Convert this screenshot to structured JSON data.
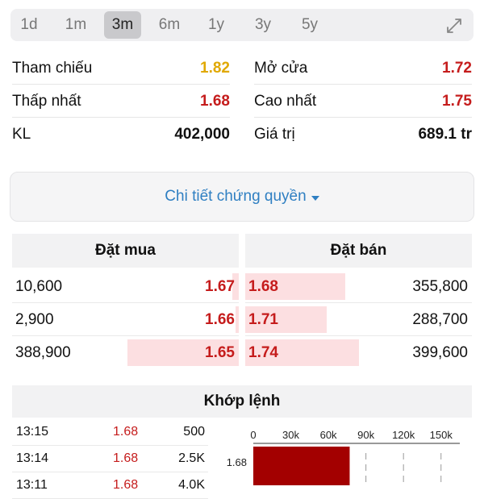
{
  "periods": [
    {
      "label": "1d",
      "active": false
    },
    {
      "label": "1m",
      "active": false
    },
    {
      "label": "3m",
      "active": true
    },
    {
      "label": "6m",
      "active": false
    },
    {
      "label": "1y",
      "active": false
    },
    {
      "label": "3y",
      "active": false
    },
    {
      "label": "5y",
      "active": false
    }
  ],
  "expand_icon": "expand-diagonal-icon",
  "stats": {
    "reference": {
      "label": "Tham chiếu",
      "value": "1.82",
      "color": "#e0a800"
    },
    "open": {
      "label": "Mở cửa",
      "value": "1.72",
      "color": "#c51c1c"
    },
    "low": {
      "label": "Thấp nhất",
      "value": "1.68",
      "color": "#c51c1c"
    },
    "high": {
      "label": "Cao nhất",
      "value": "1.75",
      "color": "#c51c1c"
    },
    "volume": {
      "label": "KL",
      "value": "402,000",
      "color": "#111111"
    },
    "value": {
      "label": "Giá trị",
      "value": "689.1 tr",
      "color": "#111111"
    }
  },
  "detail_button": {
    "label": "Chi tiết chứng quyền",
    "icon": "caret-down-icon"
  },
  "order_book": {
    "buy_title": "Đặt mua",
    "sell_title": "Đặt bán",
    "buy": [
      {
        "volume": "10,600",
        "price": "1.67",
        "depth": 0.03
      },
      {
        "volume": "2,900",
        "price": "1.66",
        "depth": 0.01
      },
      {
        "volume": "388,900",
        "price": "1.65",
        "depth": 0.49
      }
    ],
    "sell": [
      {
        "price": "1.68",
        "volume": "355,800",
        "depth": 0.44
      },
      {
        "price": "1.71",
        "volume": "288,700",
        "depth": 0.36
      },
      {
        "price": "1.74",
        "volume": "399,600",
        "depth": 0.5
      }
    ]
  },
  "matching": {
    "title": "Khớp lệnh",
    "rows": [
      {
        "time": "13:15",
        "price": "1.68",
        "volume": "500"
      },
      {
        "time": "13:14",
        "price": "1.68",
        "volume": "2.5K"
      },
      {
        "time": "13:11",
        "price": "1.68",
        "volume": "4.0K"
      }
    ]
  },
  "chart_data": {
    "type": "bar",
    "orientation": "horizontal",
    "x_ticks": [
      "0",
      "30k",
      "60k",
      "90k",
      "120k",
      "150k"
    ],
    "x_tick_values": [
      0,
      30000,
      60000,
      90000,
      120000,
      150000
    ],
    "xlim": [
      0,
      165000
    ],
    "categories": [
      "1.68"
    ],
    "values": [
      77000
    ],
    "bar_color": "#a30000",
    "grid": true
  }
}
